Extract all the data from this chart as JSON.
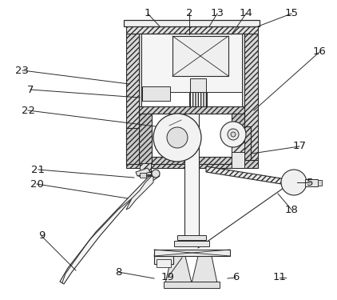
{
  "bg_color": "#ffffff",
  "line_color": "#2a2a2a",
  "label_color": "#1a1a1a",
  "figsize": [
    4.22,
    3.75
  ],
  "dpi": 100,
  "leaders": [
    [
      "1",
      185,
      17,
      200,
      33
    ],
    [
      "2",
      237,
      17,
      237,
      43
    ],
    [
      "13",
      272,
      17,
      262,
      33
    ],
    [
      "14",
      308,
      17,
      290,
      43
    ],
    [
      "15",
      365,
      17,
      323,
      33
    ],
    [
      "16",
      400,
      65,
      318,
      138
    ],
    [
      "23",
      28,
      88,
      162,
      105
    ],
    [
      "7",
      38,
      112,
      175,
      122
    ],
    [
      "22",
      35,
      138,
      195,
      158
    ],
    [
      "17",
      375,
      183,
      315,
      192
    ],
    [
      "21",
      48,
      212,
      168,
      222
    ],
    [
      "20",
      46,
      230,
      160,
      248
    ],
    [
      "5",
      388,
      228,
      372,
      228
    ],
    [
      "18",
      365,
      262,
      348,
      242
    ],
    [
      "9",
      52,
      295,
      95,
      338
    ],
    [
      "8",
      148,
      340,
      193,
      348
    ],
    [
      "19",
      210,
      347,
      228,
      322
    ],
    [
      "6",
      295,
      347,
      285,
      348
    ],
    [
      "11",
      350,
      347,
      358,
      347
    ]
  ]
}
